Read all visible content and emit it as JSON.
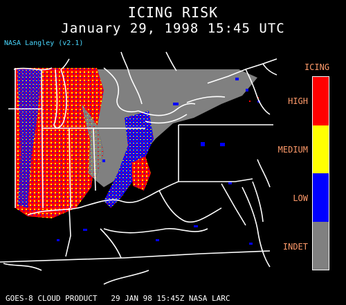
{
  "header": {
    "title": "ICING RISK",
    "subtitle": "January 29, 1998 15:45 UTC",
    "credit": "NASA Langley (v2.1)"
  },
  "legend": {
    "title": "ICING",
    "items": [
      {
        "label": "HIGH",
        "color": "#ff0000"
      },
      {
        "label": "MEDIUM",
        "color": "#ffff00"
      },
      {
        "label": "LOW",
        "color": "#0000ff"
      },
      {
        "label": "INDET",
        "color": "#808080"
      }
    ]
  },
  "footer": {
    "text": "GOES-8 CLOUD PRODUCT   29 JAN 98 15:45Z NASA LARC"
  },
  "colors": {
    "high": "#ff0000",
    "medium": "#ffff00",
    "low": "#0000ff",
    "indet": "#808080",
    "boundary": "#ffffff",
    "label_text": "#ff9a6a",
    "credit_text": "#4ad8ff"
  }
}
